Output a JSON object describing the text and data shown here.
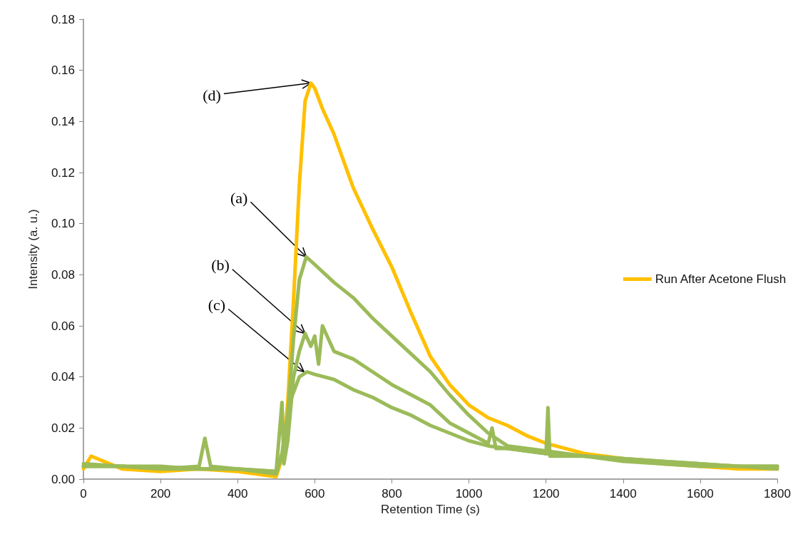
{
  "chart_data": {
    "type": "line",
    "xlabel": "Retention Time (s)",
    "ylabel": "Intensity (a. u.)",
    "xlim": [
      0,
      1800
    ],
    "ylim": [
      0,
      0.18
    ],
    "xticks": [
      0,
      200,
      400,
      600,
      800,
      1000,
      1200,
      1400,
      1600,
      1800
    ],
    "yticks": [
      {
        "value": 0,
        "label": "0.00"
      },
      {
        "value": 0.02,
        "label": "0.02"
      },
      {
        "value": 0.04,
        "label": "0.04"
      },
      {
        "value": 0.06,
        "label": "0.06"
      },
      {
        "value": 0.08,
        "label": "0.08"
      },
      {
        "value": 0.1,
        "label": "0.10"
      },
      {
        "value": 0.12,
        "label": "0.12"
      },
      {
        "value": 0.14,
        "label": "0.14"
      },
      {
        "value": 0.16,
        "label": "0.16"
      },
      {
        "value": 0.18,
        "label": "0.18"
      }
    ],
    "grid": false,
    "legend": "right",
    "marker": "none",
    "line_style": "solid",
    "series": [
      {
        "name": "Run After Acetone Flush",
        "color": "#ffc000",
        "x": [
          0,
          20,
          100,
          200,
          300,
          400,
          500,
          515,
          530,
          545,
          560,
          575,
          590,
          600,
          620,
          650,
          700,
          750,
          800,
          850,
          900,
          950,
          1000,
          1050,
          1100,
          1150,
          1200,
          1300,
          1400,
          1500,
          1600,
          1700,
          1800
        ],
        "values": [
          0.004,
          0.009,
          0.004,
          0.003,
          0.004,
          0.003,
          0.001,
          0.008,
          0.03,
          0.07,
          0.115,
          0.148,
          0.155,
          0.153,
          0.145,
          0.135,
          0.114,
          0.098,
          0.083,
          0.065,
          0.048,
          0.037,
          0.029,
          0.024,
          0.021,
          0.017,
          0.014,
          0.01,
          0.008,
          0.006,
          0.005,
          0.004,
          0.004
        ]
      },
      {
        "color": "#9bbb59",
        "x": [
          0,
          100,
          200,
          300,
          315,
          330,
          400,
          500,
          515,
          530,
          545,
          560,
          578,
          600,
          650,
          700,
          750,
          800,
          850,
          900,
          950,
          1000,
          1050,
          1100,
          1200,
          1300,
          1400,
          1500,
          1600,
          1700,
          1800
        ],
        "values": [
          0.005,
          0.005,
          0.004,
          0.005,
          0.016,
          0.005,
          0.004,
          0.003,
          0.01,
          0.025,
          0.055,
          0.078,
          0.087,
          0.084,
          0.077,
          0.071,
          0.063,
          0.056,
          0.049,
          0.042,
          0.033,
          0.025,
          0.018,
          0.013,
          0.011,
          0.009,
          0.008,
          0.007,
          0.006,
          0.005,
          0.005
        ]
      },
      {
        "color": "#9bbb59",
        "x": [
          0,
          100,
          200,
          300,
          400,
          500,
          515,
          520,
          530,
          545,
          560,
          575,
          590,
          600,
          610,
          620,
          650,
          700,
          750,
          800,
          850,
          900,
          950,
          1000,
          1050,
          1060,
          1070,
          1100,
          1200,
          1205,
          1210,
          1300,
          1400,
          1500,
          1600,
          1700,
          1800
        ],
        "values": [
          0.006,
          0.005,
          0.005,
          0.004,
          0.004,
          0.003,
          0.03,
          0.006,
          0.015,
          0.04,
          0.05,
          0.057,
          0.052,
          0.056,
          0.045,
          0.06,
          0.05,
          0.047,
          0.042,
          0.037,
          0.033,
          0.029,
          0.022,
          0.018,
          0.014,
          0.02,
          0.012,
          0.012,
          0.01,
          0.028,
          0.009,
          0.009,
          0.007,
          0.006,
          0.005,
          0.005,
          0.004
        ]
      },
      {
        "color": "#9bbb59",
        "x": [
          0,
          100,
          200,
          300,
          400,
          500,
          520,
          540,
          560,
          580,
          600,
          650,
          700,
          750,
          800,
          850,
          900,
          950,
          1000,
          1050,
          1100,
          1200,
          1300,
          1400,
          1500,
          1600,
          1700,
          1800
        ],
        "values": [
          0.005,
          0.005,
          0.004,
          0.004,
          0.004,
          0.002,
          0.012,
          0.032,
          0.04,
          0.042,
          0.041,
          0.039,
          0.035,
          0.032,
          0.028,
          0.025,
          0.021,
          0.018,
          0.015,
          0.013,
          0.012,
          0.01,
          0.009,
          0.008,
          0.007,
          0.006,
          0.005,
          0.005
        ]
      }
    ],
    "annotations": [
      {
        "text": "(a)",
        "x": 578,
        "y": 0.087
      },
      {
        "text": "(b)",
        "x": 575,
        "y": 0.057
      },
      {
        "text": "(c)",
        "x": 572,
        "y": 0.042
      },
      {
        "text": "(d)",
        "x": 590,
        "y": 0.155
      }
    ]
  }
}
